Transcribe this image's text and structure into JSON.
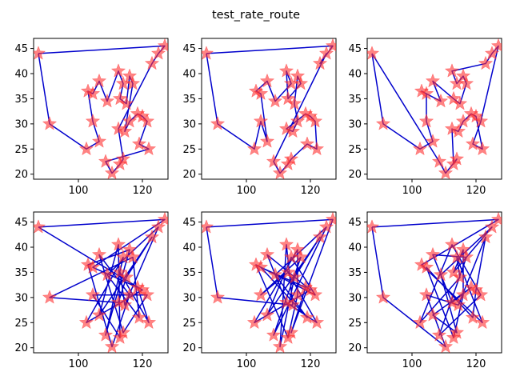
{
  "figure_title": "test_rate_route",
  "chart_data": {
    "type": "line",
    "title": "test_rate_route",
    "layout": {
      "rows": 2,
      "cols": 3
    },
    "xlim": [
      86,
      128
    ],
    "ylim": [
      19,
      47
    ],
    "xticks": [
      100,
      120
    ],
    "yticks": [
      20,
      25,
      30,
      35,
      40,
      45
    ],
    "xtick_labels": [
      "100",
      "120"
    ],
    "ytick_labels": [
      "20",
      "25",
      "30",
      "35",
      "40",
      "45"
    ],
    "route_color": "#0000cc",
    "marker_color": "#ff3030",
    "marker": "star",
    "grid": false,
    "cities": [
      [
        87.5,
        44
      ],
      [
        91,
        30
      ],
      [
        102.5,
        25
      ],
      [
        106.5,
        26.5
      ],
      [
        104.5,
        30.5
      ],
      [
        103,
        36.5
      ],
      [
        104.5,
        36
      ],
      [
        106.5,
        38.5
      ],
      [
        109,
        34.5
      ],
      [
        112.5,
        40.5
      ],
      [
        114,
        38
      ],
      [
        113,
        35
      ],
      [
        115,
        34
      ],
      [
        116,
        39.5
      ],
      [
        117,
        38
      ],
      [
        114.5,
        28.5
      ],
      [
        116,
        30.5
      ],
      [
        118.5,
        32
      ],
      [
        120,
        31.5
      ],
      [
        121.5,
        30.5
      ],
      [
        119,
        26
      ],
      [
        122,
        25
      ],
      [
        108.5,
        22.5
      ],
      [
        110.5,
        20.2
      ],
      [
        113,
        22
      ],
      [
        114,
        23
      ],
      [
        112.5,
        29
      ],
      [
        123,
        42
      ],
      [
        125,
        44
      ],
      [
        127,
        45.5
      ]
    ],
    "routes": [
      [
        0,
        1,
        2,
        3,
        4,
        5,
        6,
        7,
        8,
        9,
        10,
        11,
        12,
        13,
        14,
        15,
        16,
        17,
        18,
        19,
        20,
        21,
        22,
        23,
        24,
        25,
        26,
        27,
        28,
        29,
        0
      ],
      [
        0,
        1,
        2,
        4,
        3,
        6,
        5,
        7,
        8,
        10,
        9,
        11,
        14,
        13,
        12,
        16,
        15,
        26,
        17,
        18,
        19,
        21,
        20,
        25,
        24,
        23,
        22,
        28,
        27,
        29,
        0
      ],
      [
        0,
        1,
        2,
        3,
        4,
        6,
        5,
        8,
        7,
        11,
        12,
        14,
        13,
        10,
        9,
        27,
        28,
        29,
        19,
        20,
        21,
        18,
        17,
        16,
        15,
        26,
        24,
        25,
        23,
        22,
        0
      ],
      [
        0,
        18,
        2,
        10,
        22,
        13,
        5,
        23,
        16,
        7,
        25,
        19,
        4,
        24,
        9,
        3,
        27,
        12,
        26,
        1,
        14,
        20,
        8,
        28,
        15,
        11,
        21,
        17,
        6,
        29,
        0
      ],
      [
        0,
        1,
        15,
        9,
        23,
        12,
        27,
        3,
        10,
        19,
        5,
        24,
        16,
        13,
        2,
        18,
        7,
        26,
        21,
        11,
        4,
        14,
        22,
        28,
        8,
        20,
        6,
        17,
        25,
        29,
        0
      ],
      [
        0,
        29,
        5,
        21,
        10,
        12,
        2,
        9,
        19,
        22,
        14,
        7,
        26,
        17,
        3,
        25,
        8,
        28,
        11,
        13,
        16,
        24,
        6,
        20,
        18,
        27,
        15,
        4,
        23,
        1,
        0
      ]
    ]
  }
}
